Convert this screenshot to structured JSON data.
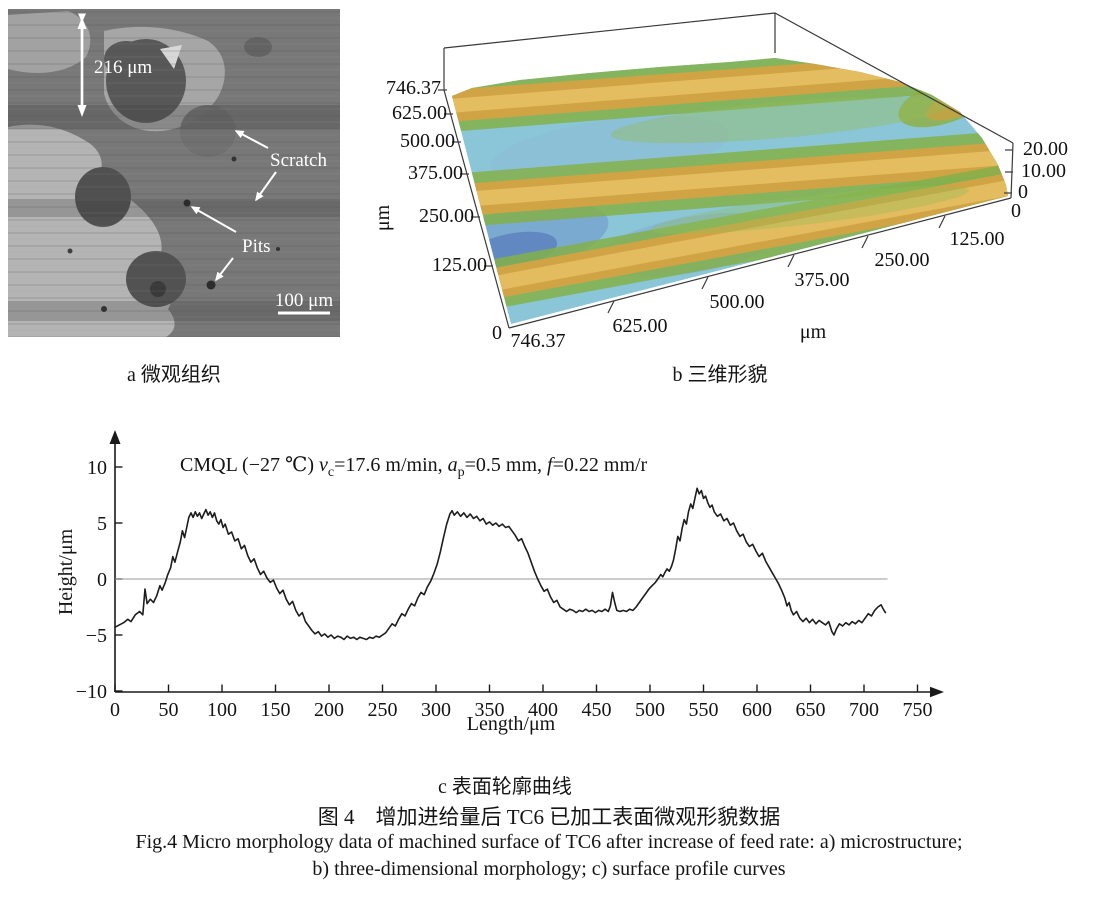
{
  "figure": {
    "caption_a": "a 微观组织",
    "caption_b": "b 三维形貌",
    "caption_c": "c 表面轮廓曲线",
    "title_zh": "图 4　增加进给量后 TC6 已加工表面微观形貌数据",
    "title_en_line1": "Fig.4 Micro morphology data of machined surface of TC6 after increase of feed rate: a) microstructure;",
    "title_en_line2": "b) three-dimensional morphology; c) surface profile curves"
  },
  "panel_a": {
    "labels": {
      "measure": "216 μm",
      "scratch": "Scratch",
      "pits": "Pits",
      "scalebar": "100 μm"
    }
  },
  "panel_b": {
    "y_ticks": [
      "746.37",
      "625.00",
      "500.00",
      "375.00",
      "250.00",
      "125.00"
    ],
    "y_origin": "0",
    "x_ticks": [
      "746.37",
      "625.00",
      "500.00",
      "375.00",
      "250.00",
      "125.00"
    ],
    "x_origin": "0",
    "z_ticks": [
      "20.00",
      "10.00",
      "0"
    ],
    "unit_y": "μm",
    "unit_x": "μm",
    "colors": {
      "valley_blue": "#5a74b8",
      "base_cyan": "#8ac6d8",
      "ridge_flank_green": "#84b04a",
      "ridge_crest_orange": "#d4a343"
    }
  },
  "panel_c": {
    "annotation_parts": [
      "CMQL (−27 ℃) ",
      "v",
      "c",
      "=17.6 m/min, ",
      "a",
      "p",
      "=0.5 mm, ",
      "f",
      "=0.22 mm/r"
    ],
    "ylabel": "Height/μm",
    "xlabel": "Length/μm"
  },
  "chart_data": [
    {
      "type": "heatmap",
      "variant": "3d-surface-morphology",
      "title": "b 三维形貌",
      "xlabel": "μm",
      "ylabel": "μm",
      "zlabel": "",
      "x_range": [
        0,
        746.37
      ],
      "y_range": [
        0,
        746.37
      ],
      "z_range": [
        0,
        20
      ],
      "x_ticks": [
        746.37,
        625.0,
        500.0,
        375.0,
        250.0,
        125.0,
        0
      ],
      "y_ticks": [
        746.37,
        625.0,
        500.0,
        375.0,
        250.0,
        125.0,
        0
      ],
      "z_ticks": [
        20.0,
        10.0,
        0
      ],
      "description": "Machined surface with three parallel diagonal feed-mark ridges (orange crests ~15-20 um with green flanks) over a cyan-blue valley base (~0-8 um), ridges running parallel to the x axis direction",
      "legend_position": "none",
      "grid": false
    },
    {
      "type": "line",
      "title": "CMQL (−27 ℃) vc=17.6 m/min, ap=0.5 mm, f=0.22 mm/r",
      "xlabel": "Length/μm",
      "ylabel": "Height/μm",
      "xlim": [
        0,
        775
      ],
      "ylim": [
        -10,
        10
      ],
      "x_ticks": [
        0,
        50,
        100,
        150,
        200,
        250,
        300,
        350,
        400,
        450,
        500,
        550,
        600,
        650,
        700,
        750
      ],
      "y_ticks": [
        10,
        5,
        0,
        -5,
        -10
      ],
      "zero_line": true,
      "grid": false,
      "legend_position": "none",
      "points": [
        [
          0,
          -4.3
        ],
        [
          4,
          -4.1
        ],
        [
          8,
          -3.9
        ],
        [
          12,
          -3.6
        ],
        [
          15,
          -3.8
        ],
        [
          19,
          -3.2
        ],
        [
          23,
          -2.9
        ],
        [
          26,
          -3.2
        ],
        [
          28,
          -0.9
        ],
        [
          30,
          -2.2
        ],
        [
          33,
          -1.8
        ],
        [
          36,
          -2.1
        ],
        [
          39,
          -1.5
        ],
        [
          42,
          -0.6
        ],
        [
          44,
          -1.0
        ],
        [
          47,
          -0.3
        ],
        [
          49,
          0.3
        ],
        [
          52,
          1.0
        ],
        [
          54,
          2.0
        ],
        [
          56,
          1.5
        ],
        [
          59,
          2.6
        ],
        [
          61,
          3.3
        ],
        [
          63,
          4.3
        ],
        [
          65,
          3.7
        ],
        [
          67,
          4.6
        ],
        [
          69,
          5.5
        ],
        [
          71,
          5.9
        ],
        [
          73,
          5.5
        ],
        [
          75,
          6.0
        ],
        [
          77,
          5.6
        ],
        [
          79,
          5.9
        ],
        [
          81,
          5.4
        ],
        [
          83,
          5.8
        ],
        [
          85,
          6.2
        ],
        [
          87,
          5.7
        ],
        [
          89,
          6.0
        ],
        [
          91,
          5.5
        ],
        [
          93,
          5.9
        ],
        [
          95,
          5.2
        ],
        [
          97,
          4.9
        ],
        [
          99,
          5.3
        ],
        [
          101,
          4.6
        ],
        [
          103,
          4.9
        ],
        [
          106,
          4.0
        ],
        [
          109,
          4.2
        ],
        [
          112,
          3.4
        ],
        [
          115,
          3.6
        ],
        [
          118,
          2.7
        ],
        [
          121,
          3.0
        ],
        [
          124,
          2.1
        ],
        [
          127,
          1.5
        ],
        [
          130,
          1.8
        ],
        [
          133,
          1.0
        ],
        [
          136,
          0.4
        ],
        [
          139,
          0.7
        ],
        [
          142,
          0.1
        ],
        [
          145,
          -0.3
        ],
        [
          148,
          -0.1
        ],
        [
          151,
          -0.8
        ],
        [
          154,
          -1.3
        ],
        [
          157,
          -1.0
        ],
        [
          160,
          -1.8
        ],
        [
          163,
          -2.3
        ],
        [
          166,
          -2.0
        ],
        [
          169,
          -2.8
        ],
        [
          172,
          -3.3
        ],
        [
          175,
          -3.0
        ],
        [
          178,
          -3.8
        ],
        [
          181,
          -4.2
        ],
        [
          184,
          -4.6
        ],
        [
          187,
          -4.9
        ],
        [
          190,
          -4.7
        ],
        [
          193,
          -5.1
        ],
        [
          196,
          -4.9
        ],
        [
          199,
          -5.2
        ],
        [
          202,
          -5.0
        ],
        [
          205,
          -5.3
        ],
        [
          208,
          -5.1
        ],
        [
          211,
          -5.2
        ],
        [
          214,
          -5.4
        ],
        [
          217,
          -5.1
        ],
        [
          220,
          -5.3
        ],
        [
          223,
          -5.2
        ],
        [
          226,
          -5.4
        ],
        [
          229,
          -5.2
        ],
        [
          232,
          -5.3
        ],
        [
          235,
          -5.4
        ],
        [
          238,
          -5.2
        ],
        [
          241,
          -5.3
        ],
        [
          244,
          -5.1
        ],
        [
          247,
          -5.2
        ],
        [
          250,
          -5.0
        ],
        [
          253,
          -4.8
        ],
        [
          256,
          -4.4
        ],
        [
          259,
          -4.0
        ],
        [
          262,
          -4.2
        ],
        [
          265,
          -3.6
        ],
        [
          268,
          -3.1
        ],
        [
          271,
          -3.3
        ],
        [
          274,
          -2.7
        ],
        [
          277,
          -2.2
        ],
        [
          280,
          -2.4
        ],
        [
          283,
          -1.7
        ],
        [
          286,
          -1.2
        ],
        [
          289,
          -1.4
        ],
        [
          292,
          -0.7
        ],
        [
          295,
          -0.2
        ],
        [
          298,
          0.5
        ],
        [
          301,
          1.3
        ],
        [
          304,
          2.4
        ],
        [
          307,
          3.7
        ],
        [
          310,
          4.9
        ],
        [
          313,
          5.8
        ],
        [
          315,
          6.1
        ],
        [
          317,
          5.7
        ],
        [
          320,
          6.0
        ],
        [
          323,
          5.6
        ],
        [
          326,
          5.9
        ],
        [
          329,
          5.5
        ],
        [
          332,
          5.8
        ],
        [
          335,
          5.4
        ],
        [
          338,
          5.6
        ],
        [
          341,
          5.2
        ],
        [
          344,
          5.4
        ],
        [
          347,
          4.9
        ],
        [
          350,
          5.1
        ],
        [
          353,
          4.8
        ],
        [
          356,
          5.0
        ],
        [
          359,
          4.7
        ],
        [
          362,
          4.9
        ],
        [
          365,
          4.6
        ],
        [
          368,
          4.7
        ],
        [
          371,
          4.3
        ],
        [
          374,
          3.9
        ],
        [
          377,
          3.4
        ],
        [
          380,
          3.6
        ],
        [
          383,
          2.9
        ],
        [
          386,
          2.3
        ],
        [
          389,
          1.5
        ],
        [
          392,
          0.7
        ],
        [
          395,
          0.0
        ],
        [
          398,
          -0.6
        ],
        [
          401,
          -1.1
        ],
        [
          404,
          -0.9
        ],
        [
          407,
          -1.6
        ],
        [
          410,
          -2.1
        ],
        [
          413,
          -1.9
        ],
        [
          416,
          -2.5
        ],
        [
          419,
          -2.7
        ],
        [
          422,
          -2.9
        ],
        [
          425,
          -2.7
        ],
        [
          428,
          -2.8
        ],
        [
          431,
          -3.0
        ],
        [
          434,
          -2.8
        ],
        [
          437,
          -2.9
        ],
        [
          440,
          -2.7
        ],
        [
          443,
          -2.9
        ],
        [
          446,
          -2.8
        ],
        [
          449,
          -3.0
        ],
        [
          452,
          -2.8
        ],
        [
          455,
          -2.9
        ],
        [
          458,
          -2.7
        ],
        [
          461,
          -2.9
        ],
        [
          463,
          -2.4
        ],
        [
          465,
          -1.2
        ],
        [
          467,
          -2.1
        ],
        [
          469,
          -2.8
        ],
        [
          472,
          -2.9
        ],
        [
          475,
          -2.8
        ],
        [
          478,
          -2.9
        ],
        [
          481,
          -2.7
        ],
        [
          484,
          -2.8
        ],
        [
          487,
          -2.5
        ],
        [
          490,
          -2.1
        ],
        [
          493,
          -1.7
        ],
        [
          496,
          -1.3
        ],
        [
          499,
          -0.9
        ],
        [
          502,
          -0.6
        ],
        [
          505,
          -0.3
        ],
        [
          508,
          0.1
        ],
        [
          510,
          0.4
        ],
        [
          512,
          0.2
        ],
        [
          514,
          0.6
        ],
        [
          516,
          0.9
        ],
        [
          518,
          0.7
        ],
        [
          520,
          1.1
        ],
        [
          522,
          1.7
        ],
        [
          524,
          2.7
        ],
        [
          526,
          3.8
        ],
        [
          528,
          3.4
        ],
        [
          530,
          4.5
        ],
        [
          532,
          5.3
        ],
        [
          534,
          4.9
        ],
        [
          536,
          6.0
        ],
        [
          538,
          6.7
        ],
        [
          540,
          6.3
        ],
        [
          542,
          7.2
        ],
        [
          544,
          8.1
        ],
        [
          546,
          7.6
        ],
        [
          548,
          7.9
        ],
        [
          550,
          7.2
        ],
        [
          552,
          7.4
        ],
        [
          554,
          6.8
        ],
        [
          556,
          6.4
        ],
        [
          558,
          6.6
        ],
        [
          560,
          6.0
        ],
        [
          563,
          5.6
        ],
        [
          566,
          5.8
        ],
        [
          569,
          5.2
        ],
        [
          572,
          5.4
        ],
        [
          575,
          4.8
        ],
        [
          578,
          5.0
        ],
        [
          581,
          4.3
        ],
        [
          584,
          3.8
        ],
        [
          587,
          4.0
        ],
        [
          590,
          3.3
        ],
        [
          593,
          2.9
        ],
        [
          596,
          3.1
        ],
        [
          599,
          2.5
        ],
        [
          602,
          2.0
        ],
        [
          605,
          2.3
        ],
        [
          608,
          1.6
        ],
        [
          611,
          1.1
        ],
        [
          614,
          0.6
        ],
        [
          617,
          0.1
        ],
        [
          620,
          -0.4
        ],
        [
          623,
          -1.0
        ],
        [
          626,
          -1.7
        ],
        [
          628,
          -2.4
        ],
        [
          630,
          -2.1
        ],
        [
          632,
          -2.8
        ],
        [
          634,
          -3.2
        ],
        [
          637,
          -2.9
        ],
        [
          640,
          -3.5
        ],
        [
          643,
          -3.8
        ],
        [
          646,
          -3.5
        ],
        [
          649,
          -3.9
        ],
        [
          652,
          -3.6
        ],
        [
          655,
          -4.0
        ],
        [
          658,
          -3.7
        ],
        [
          661,
          -3.9
        ],
        [
          664,
          -4.1
        ],
        [
          667,
          -3.8
        ],
        [
          670,
          -4.7
        ],
        [
          672,
          -5.0
        ],
        [
          674,
          -4.5
        ],
        [
          677,
          -4.0
        ],
        [
          680,
          -4.2
        ],
        [
          683,
          -3.9
        ],
        [
          686,
          -4.1
        ],
        [
          689,
          -3.8
        ],
        [
          692,
          -4.0
        ],
        [
          695,
          -3.7
        ],
        [
          698,
          -3.9
        ],
        [
          701,
          -3.5
        ],
        [
          704,
          -3.1
        ],
        [
          707,
          -3.3
        ],
        [
          710,
          -2.8
        ],
        [
          713,
          -2.5
        ],
        [
          716,
          -2.3
        ],
        [
          718,
          -2.7
        ],
        [
          720,
          -3.0
        ]
      ]
    }
  ]
}
